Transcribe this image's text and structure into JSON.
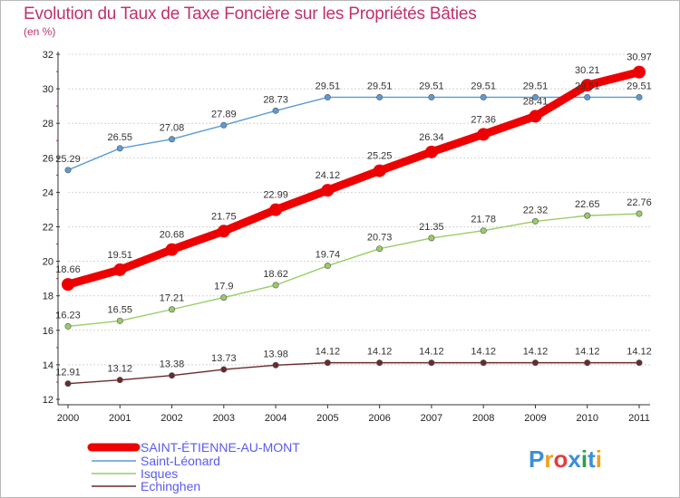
{
  "title": "Evolution du Taux de Taxe Foncière sur les Propriétés Bâties",
  "unit_label": "(en %)",
  "brand": {
    "letters": [
      "P",
      "r",
      "o",
      "x",
      "i",
      "t",
      "i"
    ],
    "colors": [
      "#3b8fd8",
      "#f0a020",
      "#e04040",
      "#3b8fd8",
      "#2e9e4f",
      "#3b8fd8",
      "#f0a020"
    ]
  },
  "chart_data": {
    "type": "line",
    "title": "Evolution du Taux de Taxe Foncière sur les Propriétés Bâties",
    "ylabel": "(en %)",
    "xlabel": "",
    "ylim": [
      12,
      32
    ],
    "yticks": [
      12,
      14,
      16,
      18,
      20,
      22,
      24,
      26,
      28,
      30,
      32
    ],
    "grid": "horizontal dashed",
    "categories": [
      "2000",
      "2001",
      "2002",
      "2003",
      "2004",
      "2005",
      "2006",
      "2007",
      "2008",
      "2009",
      "2010",
      "2011"
    ],
    "series": [
      {
        "name": "SAINT-ÉTIENNE-AU-MONT",
        "color": "#ee0000",
        "values": [
          18.66,
          19.51,
          20.68,
          21.75,
          22.99,
          24.12,
          25.25,
          26.34,
          27.36,
          28.41,
          30.21,
          30.97
        ],
        "labels": [
          "18.66",
          "19.51",
          "20.68",
          "21.75",
          "22.99",
          "24.12",
          "25.25",
          "26.34",
          "27.36",
          "28.41",
          "30.21",
          "30.97"
        ]
      },
      {
        "name": "Saint-Léonard",
        "color": "#5b9bd5",
        "values": [
          25.29,
          26.55,
          27.08,
          27.89,
          28.73,
          29.51,
          29.51,
          29.51,
          29.51,
          29.51,
          29.51,
          29.51
        ],
        "labels": [
          "25.29",
          "26.55",
          "27.08",
          "27.89",
          "28.73",
          "29.51",
          "29.51",
          "29.51",
          "29.51",
          "29.51",
          "29.51",
          "29.51"
        ]
      },
      {
        "name": "Isques",
        "color": "#99cc66",
        "values": [
          16.23,
          16.55,
          17.21,
          17.9,
          18.62,
          19.74,
          20.73,
          21.35,
          21.78,
          22.32,
          22.65,
          22.76
        ],
        "labels": [
          "16.23",
          "16.55",
          "17.21",
          "17.9",
          "18.62",
          "19.74",
          "20.73",
          "21.35",
          "21.78",
          "22.32",
          "22.65",
          "22.76"
        ]
      },
      {
        "name": "Echinghen",
        "color": "#6b2a2a",
        "values": [
          12.91,
          13.12,
          13.38,
          13.73,
          13.98,
          14.12,
          14.12,
          14.12,
          14.12,
          14.12,
          14.12,
          14.12
        ],
        "labels": [
          "12.91",
          "13.12",
          "13.38",
          "13.73",
          "13.98",
          "14.12",
          "14.12",
          "14.12",
          "14.12",
          "14.12",
          "14.12",
          "14.12"
        ]
      }
    ],
    "legend": "bottom-left"
  }
}
